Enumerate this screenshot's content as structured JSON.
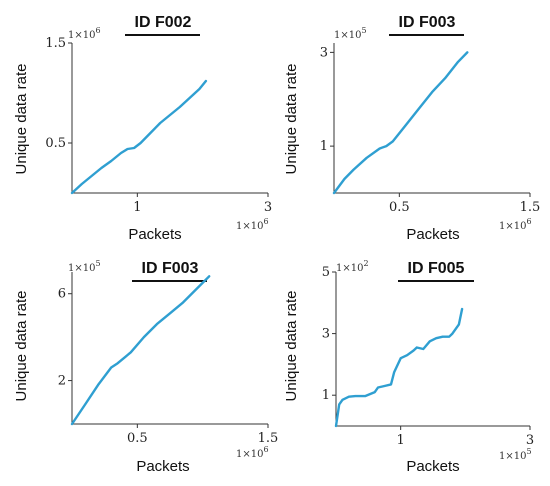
{
  "chart_data": [
    {
      "type": "line",
      "title": "ID F002",
      "xlabel": "Packets",
      "ylabel": "Unique data rate",
      "x_multiplier": "1×10",
      "x_exponent": "6",
      "y_multiplier": "1×10",
      "y_exponent": "6",
      "xlim": [
        0,
        3
      ],
      "ylim": [
        0,
        1.5
      ],
      "xticks": [
        1,
        3
      ],
      "yticks": [
        0.5,
        1.5
      ],
      "series": [
        {
          "x": [
            0,
            0.15,
            0.3,
            0.45,
            0.6,
            0.75,
            0.85,
            0.95,
            1.05,
            1.2,
            1.35,
            1.5,
            1.65,
            1.8,
            1.95,
            2.05
          ],
          "y": [
            0,
            0.09,
            0.17,
            0.25,
            0.32,
            0.4,
            0.44,
            0.45,
            0.5,
            0.6,
            0.7,
            0.78,
            0.86,
            0.95,
            1.04,
            1.12
          ]
        }
      ],
      "grid": false,
      "color": "#2f9fd1"
    },
    {
      "type": "line",
      "title": "ID F003",
      "xlabel": "Packets",
      "ylabel": "Unique data rate",
      "x_multiplier": "1×10",
      "x_exponent": "6",
      "y_multiplier": "1×10",
      "y_exponent": "5",
      "xlim": [
        0,
        1.5
      ],
      "ylim": [
        0,
        3.2
      ],
      "xticks": [
        0.5,
        1.5
      ],
      "yticks": [
        1,
        3
      ],
      "series": [
        {
          "x": [
            0,
            0.08,
            0.15,
            0.25,
            0.35,
            0.4,
            0.45,
            0.55,
            0.65,
            0.75,
            0.85,
            0.95,
            1.02
          ],
          "y": [
            0,
            0.3,
            0.5,
            0.75,
            0.95,
            1.0,
            1.1,
            1.45,
            1.8,
            2.15,
            2.45,
            2.8,
            3.0
          ]
        }
      ],
      "grid": false,
      "color": "#2f9fd1"
    },
    {
      "type": "line",
      "title": "ID F003",
      "xlabel": "Packets",
      "ylabel": "Unique data rate",
      "x_multiplier": "1×10",
      "x_exponent": "6",
      "y_multiplier": "1×10",
      "y_exponent": "5",
      "xlim": [
        0,
        1.5
      ],
      "ylim": [
        0,
        7
      ],
      "xticks": [
        0.5,
        1.5
      ],
      "yticks": [
        2,
        6
      ],
      "series": [
        {
          "x": [
            0,
            0.1,
            0.2,
            0.3,
            0.35,
            0.45,
            0.55,
            0.65,
            0.75,
            0.85,
            0.95,
            1.05
          ],
          "y": [
            0,
            0.9,
            1.8,
            2.6,
            2.8,
            3.3,
            4.0,
            4.6,
            5.1,
            5.6,
            6.2,
            6.8
          ]
        }
      ],
      "grid": false,
      "color": "#2f9fd1"
    },
    {
      "type": "line",
      "title": "ID F005",
      "xlabel": "Packets",
      "ylabel": "Unique data rate",
      "x_multiplier": "1×10",
      "x_exponent": "5",
      "y_multiplier": "1×10",
      "y_exponent": "2",
      "xlim": [
        0,
        3
      ],
      "ylim": [
        0,
        5
      ],
      "xticks": [
        1,
        3
      ],
      "yticks": [
        1,
        3,
        5
      ],
      "series": [
        {
          "x": [
            0,
            0.05,
            0.1,
            0.2,
            0.3,
            0.45,
            0.6,
            0.65,
            0.75,
            0.85,
            0.9,
            1.0,
            1.1,
            1.2,
            1.25,
            1.35,
            1.45,
            1.55,
            1.65,
            1.75,
            1.8,
            1.9,
            1.95
          ],
          "y": [
            0,
            0.7,
            0.85,
            0.95,
            0.97,
            0.97,
            1.1,
            1.25,
            1.3,
            1.35,
            1.75,
            2.2,
            2.3,
            2.45,
            2.55,
            2.5,
            2.75,
            2.85,
            2.9,
            2.9,
            3.0,
            3.3,
            3.8
          ]
        }
      ],
      "grid": false,
      "color": "#2f9fd1"
    }
  ]
}
